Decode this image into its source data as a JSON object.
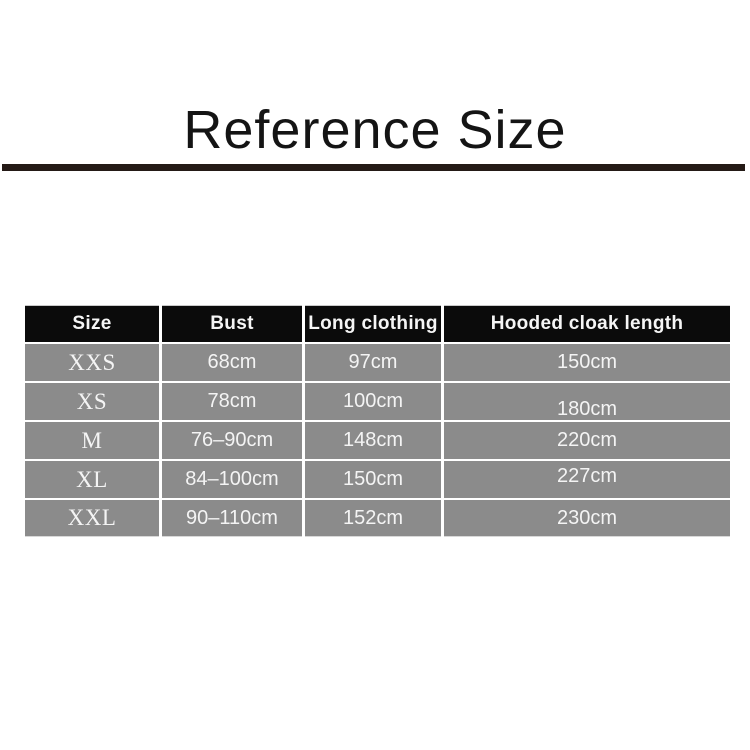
{
  "title": "Reference Size",
  "colors": {
    "background": "#ffffff",
    "title_text": "#141414",
    "rule": "#241a16",
    "header_bg": "#0b0b0b",
    "row_bg": "#8b8b8b",
    "cell_text": "#f4f4f4"
  },
  "size_table": {
    "headers": [
      "Size",
      "Bust",
      "Long clothing",
      "Hooded cloak length"
    ],
    "rows": [
      {
        "size": "XXS",
        "bust": "68cm",
        "long_clothing": "97cm",
        "hooded_cloak_length": "150cm"
      },
      {
        "size": "XS",
        "bust": "78cm",
        "long_clothing": "100cm",
        "hooded_cloak_length": "180cm"
      },
      {
        "size": "M",
        "bust": "76–90cm",
        "long_clothing": "148cm",
        "hooded_cloak_length": "220cm"
      },
      {
        "size": "XL",
        "bust": "84–100cm",
        "long_clothing": "150cm",
        "hooded_cloak_length": "227cm"
      },
      {
        "size": "XXL",
        "bust": "90–110cm",
        "long_clothing": "152cm",
        "hooded_cloak_length": "230cm"
      }
    ]
  },
  "chart_data": {
    "type": "table",
    "title": "Reference Size",
    "columns": [
      "Size",
      "Bust",
      "Long clothing",
      "Hooded cloak length"
    ],
    "rows": [
      [
        "XXS",
        "68cm",
        "97cm",
        "150cm"
      ],
      [
        "XS",
        "78cm",
        "100cm",
        "180cm"
      ],
      [
        "M",
        "76–90cm",
        "148cm",
        "220cm"
      ],
      [
        "XL",
        "84–100cm",
        "150cm",
        "227cm"
      ],
      [
        "XXL",
        "90–110cm",
        "152cm",
        "230cm"
      ]
    ]
  }
}
